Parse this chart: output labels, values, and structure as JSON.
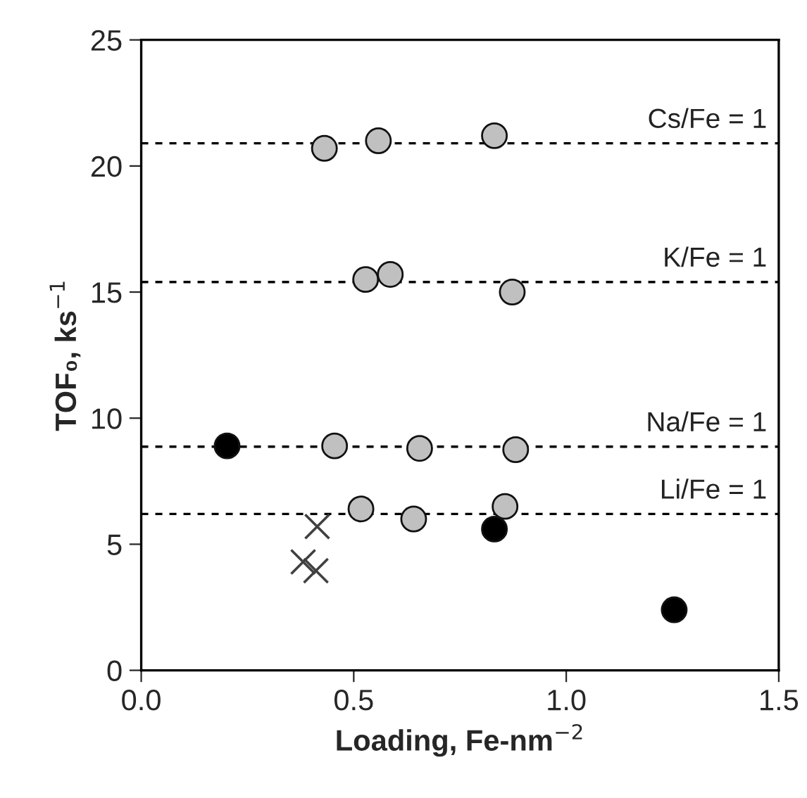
{
  "chart_data": {
    "type": "scatter",
    "xlabel": "Loading, Fe-nm$^{−2}$",
    "ylabel": "TOF₀, ks$^{−1}$",
    "xlim": [
      0,
      1.5
    ],
    "ylim": [
      0,
      25
    ],
    "xticks": [
      {
        "value": 0,
        "label": "0.0"
      },
      {
        "value": 0.5,
        "label": "0.5"
      },
      {
        "value": 1,
        "label": "1.0"
      },
      {
        "value": 1.5,
        "label": "1.5"
      }
    ],
    "yticks": [
      0,
      5,
      10,
      15,
      20,
      25
    ],
    "grid": false,
    "legend": false,
    "series": [
      {
        "color": "#c0c0c0",
        "marker": "circle",
        "x": [
          0.431,
          0.558,
          0.831,
          0.528,
          0.586,
          0.873,
          0.455,
          0.655,
          0.881,
          0.517,
          0.641,
          0.856
        ],
        "values": [
          20.7,
          21.0,
          21.2,
          15.5,
          15.7,
          15.0,
          8.9,
          8.8,
          8.75,
          6.4,
          6.0,
          6.5
        ]
      },
      {
        "color": "#000000",
        "marker": "circle",
        "x": [
          0.202,
          0.831,
          1.254
        ],
        "values": [
          8.9,
          5.6,
          2.4
        ]
      },
      {
        "color": "#404040",
        "marker": "cross",
        "x": [
          0.414,
          0.381,
          0.411
        ],
        "values": [
          5.7,
          4.3,
          3.95
        ]
      }
    ],
    "ref_lines": [
      {
        "axis": "y",
        "value": 20.9,
        "line_style": "dashed",
        "color": "#000000"
      },
      {
        "axis": "y",
        "value": 15.4,
        "line_style": "dashed",
        "color": "#000000"
      },
      {
        "axis": "y",
        "value": 8.87,
        "line_style": "dashed",
        "color": "#000000"
      },
      {
        "axis": "y",
        "value": 6.2,
        "line_style": "dashed",
        "color": "#000000"
      }
    ],
    "annotations": [
      {
        "text": "Cs/Fe = 1",
        "y": 20.9
      },
      {
        "text": "K/Fe = 1",
        "y": 15.4
      },
      {
        "text": "Na/Fe = 1",
        "y": 8.87
      },
      {
        "text": "Li/Fe = 1",
        "y": 6.2
      }
    ]
  }
}
